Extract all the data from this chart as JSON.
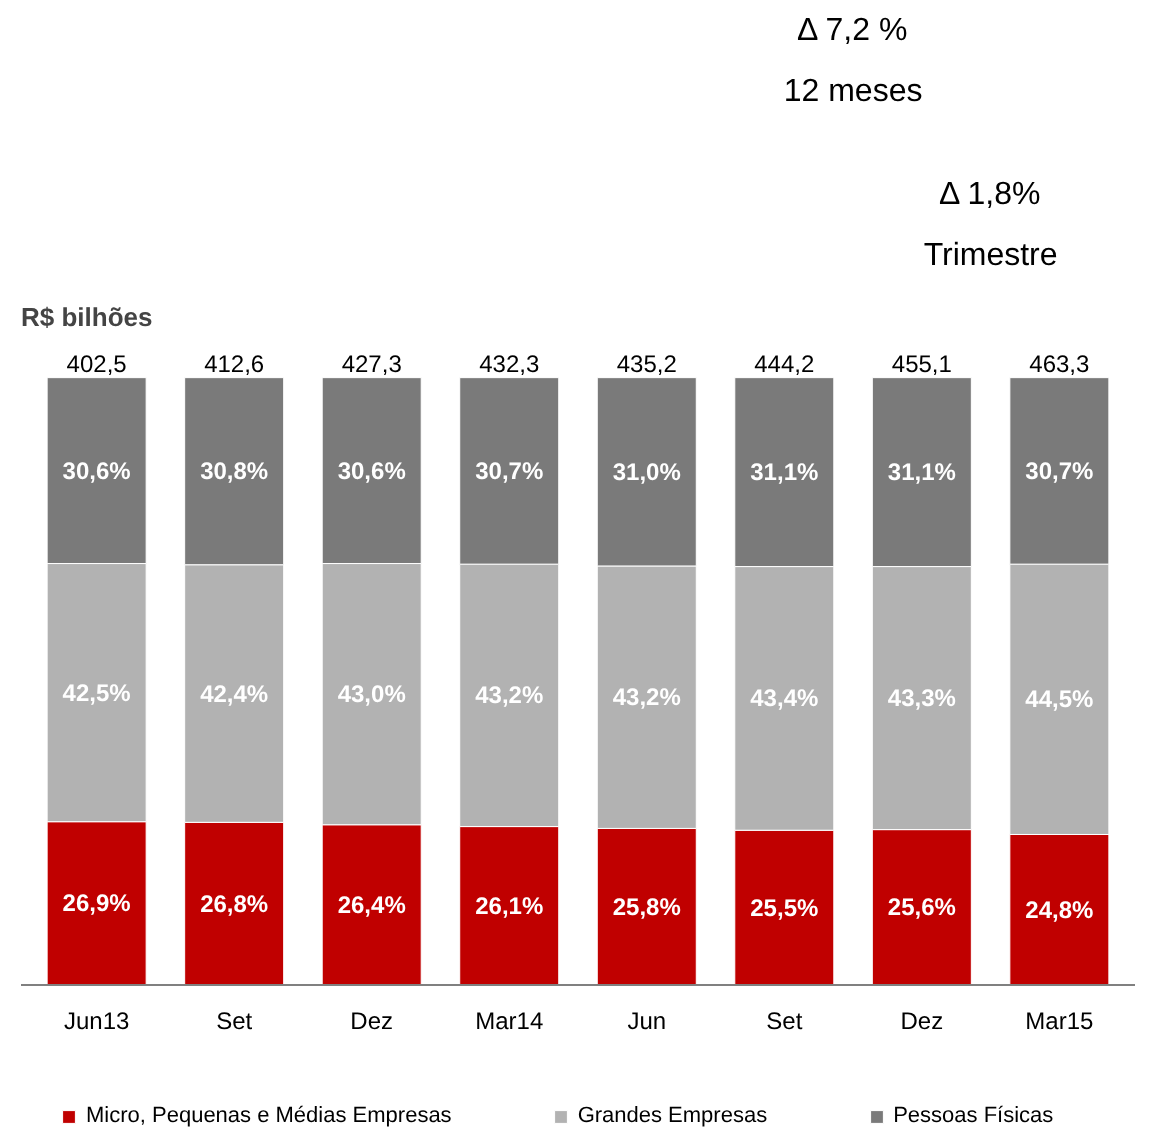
{
  "chart_data": {
    "type": "bar",
    "stacked": true,
    "ylabel": "R$ bilhões",
    "categories": [
      "Jun13",
      "Set",
      "Dez",
      "Mar14",
      "Jun",
      "Set",
      "Dez",
      "Mar15"
    ],
    "series": [
      {
        "name": "Micro, Pequenas e Médias Empresas",
        "color": "#c00000",
        "values": [
          26.9,
          26.8,
          26.4,
          26.1,
          25.8,
          25.5,
          25.6,
          24.8
        ],
        "value_labels": [
          "26,9%",
          "26,8%",
          "26,4%",
          "26,1%",
          "25,8%",
          "25,5%",
          "25,6%",
          "24,8%"
        ]
      },
      {
        "name": "Grandes Empresas",
        "color": "#b2b2b2",
        "values": [
          42.5,
          42.4,
          43.0,
          43.2,
          43.2,
          43.4,
          43.3,
          44.5
        ],
        "value_labels": [
          "42,5%",
          "42,4%",
          "43,0%",
          "43,2%",
          "43,2%",
          "43,4%",
          "43,3%",
          "44,5%"
        ]
      },
      {
        "name": "Pessoas Físicas",
        "color": "#7a7a7a",
        "values": [
          30.6,
          30.8,
          30.6,
          30.7,
          31.0,
          31.1,
          31.1,
          30.7
        ],
        "value_labels": [
          "30,6%",
          "30,8%",
          "30,6%",
          "30,7%",
          "31,0%",
          "31,1%",
          "31,1%",
          "30,7%"
        ]
      }
    ],
    "annotations": [
      "402,5",
      "412,6",
      "427,3",
      "432,3",
      "435,2",
      "444,2",
      "455,1",
      "463,3",
      "Δ 7,2 %",
      "12 meses",
      "Δ 1,8%",
      "Trimestre"
    ],
    "legend": "bottom"
  }
}
